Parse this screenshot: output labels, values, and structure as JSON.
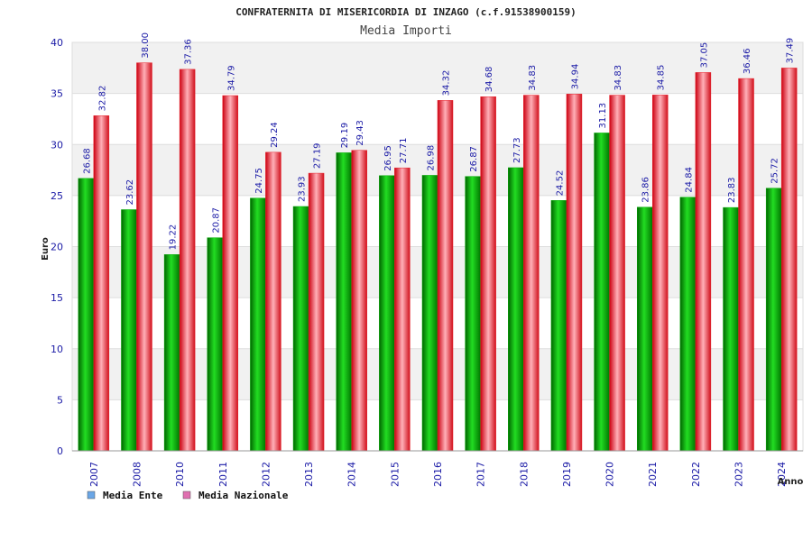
{
  "chart_data": {
    "type": "bar",
    "title": "CONFRATERNITA DI MISERICORDIA DI INZAGO (c.f.91538900159)",
    "subtitle": "Media Importi",
    "xlabel": "Anno",
    "ylabel": "Euro",
    "ylim": [
      0,
      40
    ],
    "yticks": [
      0,
      5,
      10,
      15,
      20,
      25,
      30,
      35,
      40
    ],
    "grid": true,
    "legend_position": "bottom-left",
    "categories": [
      "2007",
      "2008",
      "2010",
      "2011",
      "2012",
      "2013",
      "2014",
      "2015",
      "2016",
      "2017",
      "2018",
      "2019",
      "2020",
      "2021",
      "2022",
      "2023",
      "2024"
    ],
    "series": [
      {
        "name": "Media Ente",
        "color": "#00aa00",
        "legend_color": "#6aa6e6",
        "values": [
          26.68,
          23.62,
          19.22,
          20.87,
          24.75,
          23.93,
          29.19,
          26.95,
          26.98,
          26.87,
          27.73,
          24.52,
          31.13,
          23.86,
          24.84,
          23.83,
          25.72
        ],
        "labels": [
          "26.68",
          "23.62",
          "19.22",
          "20.87",
          "24.75",
          "23.93",
          "29.19",
          "26.95",
          "26.98",
          "26.87",
          "27.73",
          "24.52",
          "31.13",
          "23.86",
          "24.84",
          "23.83",
          "25.72"
        ]
      },
      {
        "name": "Media Nazionale",
        "color": "#e8202a",
        "legend_color": "#e070b0",
        "values": [
          32.82,
          38.0,
          37.36,
          34.79,
          29.24,
          27.19,
          29.43,
          27.71,
          34.32,
          34.68,
          34.83,
          34.94,
          34.83,
          34.85,
          37.05,
          36.46,
          37.49
        ],
        "labels": [
          "32.82",
          "38.00",
          "37.36",
          "34.79",
          "29.24",
          "27.19",
          "29.43",
          "27.71",
          "34.32",
          "34.68",
          "34.83",
          "34.94",
          "34.83",
          "34.85",
          "37.05",
          "36.46",
          "37.49"
        ]
      }
    ]
  }
}
